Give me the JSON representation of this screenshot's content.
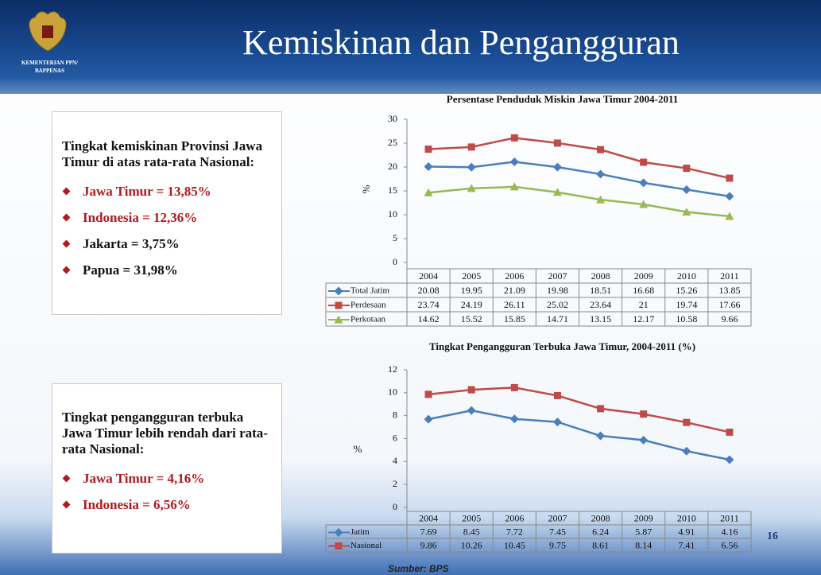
{
  "header": {
    "title": "Kemiskinan dan Pengangguran",
    "logo_text": [
      "KEMENTERIAN PPN/",
      "BAPPENAS"
    ]
  },
  "boxes": [
    {
      "heading": "Tingkat kemiskinan Provinsi Jawa Timur di atas rata-rata Nasional:",
      "bullets": [
        {
          "text": "Jawa Timur = 13,85%",
          "color": "#b0191e"
        },
        {
          "text": "Indonesia = 12,36%",
          "color": "#b0191e"
        },
        {
          "text": "Jakarta = 3,75%",
          "color": "#111111"
        },
        {
          "text": "Papua = 31,98%",
          "color": "#111111"
        }
      ]
    },
    {
      "heading": "Tingkat pengangguran terbuka Jawa Timur lebih rendah dari rata-rata Nasional:",
      "bullets": [
        {
          "text": "Jawa Timur = 4,16%",
          "color": "#b0191e"
        },
        {
          "text": "Indonesia = 6,56%",
          "color": "#b0191e"
        }
      ]
    }
  ],
  "chart_data": [
    {
      "type": "line",
      "title": "Persentase Penduduk Miskin Jawa Timur 2004-2011",
      "y_label": "%",
      "categories": [
        "2004",
        "2005",
        "2006",
        "2007",
        "2008",
        "2009",
        "2010",
        "2011"
      ],
      "ylim": [
        0,
        30
      ],
      "yticks": [
        0,
        5,
        10,
        15,
        20,
        25,
        30
      ],
      "series": [
        {
          "name": "Total Jatim",
          "color": "#4a7ebb",
          "marker": "diamond",
          "values": [
            20.08,
            19.95,
            21.09,
            19.98,
            18.51,
            16.68,
            15.26,
            13.85
          ]
        },
        {
          "name": "Perdesaan",
          "color": "#be4b48",
          "marker": "square",
          "values": [
            23.74,
            24.19,
            26.11,
            25.02,
            23.64,
            21,
            19.74,
            17.66
          ]
        },
        {
          "name": "Perkotaan",
          "color": "#98b954",
          "marker": "triangle",
          "values": [
            14.62,
            15.52,
            15.85,
            14.71,
            13.15,
            12.17,
            10.58,
            9.66
          ]
        }
      ]
    },
    {
      "type": "line",
      "title": "Tingkat Pengangguran Terbuka Jawa Timur, 2004-2011 (%)",
      "y_label": "%",
      "categories": [
        "2004",
        "2005",
        "2006",
        "2007",
        "2008",
        "2009",
        "2010",
        "2011"
      ],
      "ylim": [
        0,
        12
      ],
      "yticks": [
        0,
        2,
        4,
        6,
        8,
        10,
        12
      ],
      "series": [
        {
          "name": "Jatim",
          "color": "#4a7ebb",
          "marker": "diamond",
          "values": [
            7.69,
            8.45,
            7.72,
            7.45,
            6.24,
            5.87,
            4.91,
            4.16
          ]
        },
        {
          "name": "Nasional",
          "color": "#be4b48",
          "marker": "square",
          "values": [
            9.86,
            10.26,
            10.45,
            9.75,
            8.61,
            8.14,
            7.41,
            6.56
          ]
        }
      ]
    }
  ],
  "page_number": "16",
  "source": "Sumber: BPS"
}
